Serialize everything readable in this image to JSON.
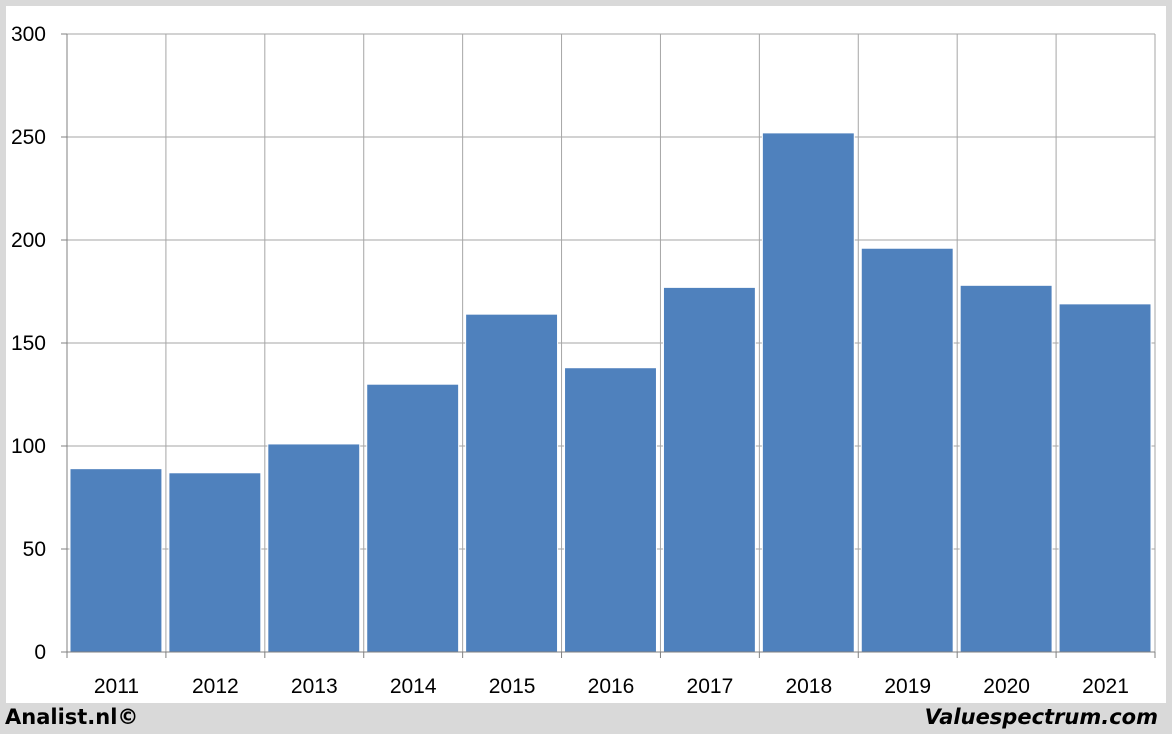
{
  "chart_data": {
    "type": "bar",
    "categories": [
      "2011",
      "2012",
      "2013",
      "2014",
      "2015",
      "2016",
      "2017",
      "2018",
      "2019",
      "2020",
      "2021"
    ],
    "values": [
      89,
      87,
      101,
      130,
      164,
      138,
      177,
      252,
      196,
      178,
      169
    ],
    "title": "",
    "xlabel": "",
    "ylabel": "",
    "ylim": [
      0,
      300
    ],
    "yticks": [
      0,
      50,
      100,
      150,
      200,
      250,
      300
    ],
    "grid": true,
    "legend": "none",
    "bar_color": "#4f81bd"
  },
  "footer": {
    "left_text": "Analist.nl©",
    "right_text": "Valuespectrum.com"
  }
}
